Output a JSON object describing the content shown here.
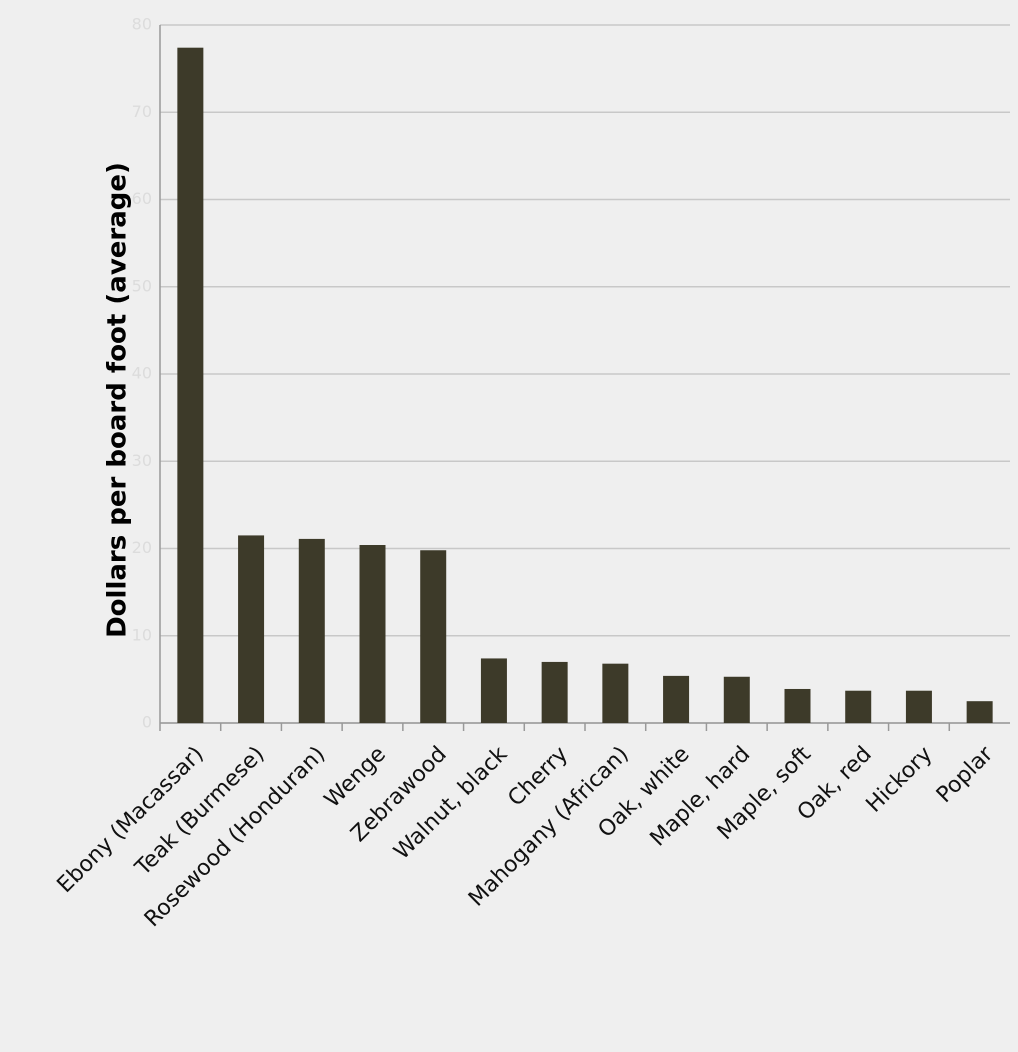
{
  "chart_data": {
    "type": "bar",
    "y_label": "Dollars per board foot (average)",
    "categories": [
      "Ebony (Macassar)",
      "Teak (Burmese)",
      "Rosewood (Honduran)",
      "Wenge",
      "Zebrawood",
      "Walnut, black",
      "Cherry",
      "Mahogany (African)",
      "Oak, white",
      "Maple, hard",
      "Maple, soft",
      "Oak, red",
      "Hickory",
      "Poplar"
    ],
    "values": [
      77.4,
      21.5,
      21.1,
      20.4,
      19.8,
      7.4,
      7.0,
      6.8,
      5.4,
      5.3,
      3.9,
      3.7,
      3.7,
      2.5
    ],
    "color": "#3d3a29",
    "ylim": [
      0,
      80
    ],
    "yticks": [
      0,
      10,
      20,
      30,
      40,
      50,
      60,
      70,
      80
    ],
    "grid": true
  }
}
